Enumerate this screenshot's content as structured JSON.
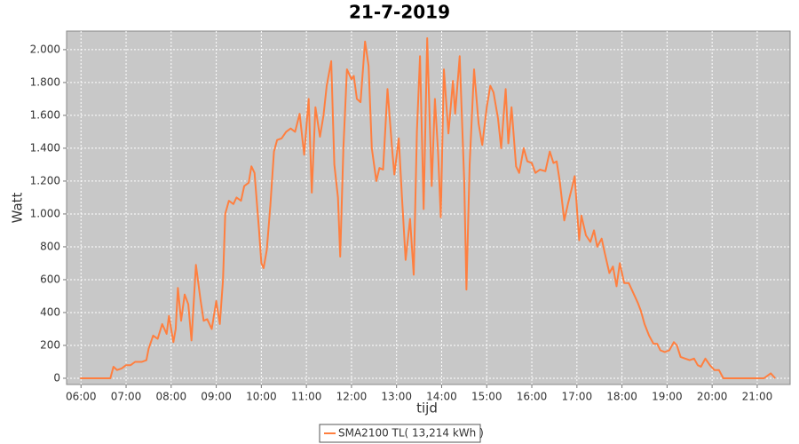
{
  "chart_data": {
    "type": "line",
    "title": "21-7-2019",
    "xlabel": "tijd",
    "ylabel": "Watt",
    "xlim": [
      5.68,
      21.73
    ],
    "ylim": [
      -38,
      2113
    ],
    "grid": true,
    "legend": "bottom",
    "xticks": [
      {
        "value": 6,
        "label": "06:00"
      },
      {
        "value": 7,
        "label": "07:00"
      },
      {
        "value": 8,
        "label": "08:00"
      },
      {
        "value": 9,
        "label": "09:00"
      },
      {
        "value": 10,
        "label": "10:00"
      },
      {
        "value": 11,
        "label": "11:00"
      },
      {
        "value": 12,
        "label": "12:00"
      },
      {
        "value": 13,
        "label": "13:00"
      },
      {
        "value": 14,
        "label": "14:00"
      },
      {
        "value": 15,
        "label": "15:00"
      },
      {
        "value": 16,
        "label": "16:00"
      },
      {
        "value": 17,
        "label": "17:00"
      },
      {
        "value": 18,
        "label": "18:00"
      },
      {
        "value": 19,
        "label": "19:00"
      },
      {
        "value": 20,
        "label": "20:00"
      },
      {
        "value": 21,
        "label": "21:00"
      }
    ],
    "yticks": [
      0,
      {
        "value": 200,
        "label": "200"
      },
      {
        "value": 400,
        "label": "400"
      },
      {
        "value": 600,
        "label": "600"
      },
      {
        "value": 800,
        "label": "800"
      },
      {
        "value": 1000,
        "label": "1.000"
      },
      {
        "value": 1200,
        "label": "1.200"
      },
      {
        "value": 1400,
        "label": "1.400"
      },
      {
        "value": 1600,
        "label": "1.600"
      },
      {
        "value": 1800,
        "label": "1.800"
      },
      {
        "value": 2000,
        "label": "2.000"
      }
    ],
    "x": [
      5.98,
      6.5,
      6.65,
      6.72,
      6.8,
      6.9,
      7.0,
      7.1,
      7.2,
      7.35,
      7.45,
      7.5,
      7.6,
      7.7,
      7.8,
      7.9,
      7.95,
      8.05,
      8.1,
      8.15,
      8.22,
      8.3,
      8.38,
      8.45,
      8.55,
      8.65,
      8.72,
      8.8,
      8.9,
      9.0,
      9.08,
      9.15,
      9.2,
      9.28,
      9.38,
      9.45,
      9.55,
      9.62,
      9.72,
      9.78,
      9.85,
      9.95,
      10.0,
      10.05,
      10.12,
      10.2,
      10.28,
      10.35,
      10.45,
      10.55,
      10.65,
      10.75,
      10.85,
      10.95,
      11.05,
      11.12,
      11.2,
      11.3,
      11.38,
      11.45,
      11.55,
      11.62,
      11.7,
      11.75,
      11.82,
      11.9,
      12.0,
      12.05,
      12.12,
      12.2,
      12.3,
      12.38,
      12.45,
      12.55,
      12.62,
      12.7,
      12.8,
      12.9,
      12.95,
      13.05,
      13.12,
      13.2,
      13.3,
      13.38,
      13.45,
      13.52,
      13.6,
      13.68,
      13.78,
      13.85,
      13.92,
      13.98,
      14.05,
      14.15,
      14.25,
      14.3,
      14.4,
      14.5,
      14.55,
      14.62,
      14.72,
      14.82,
      14.9,
      15.0,
      15.08,
      15.15,
      15.25,
      15.32,
      15.42,
      15.48,
      15.55,
      15.65,
      15.72,
      15.82,
      15.9,
      16.0,
      16.08,
      16.18,
      16.3,
      16.4,
      16.48,
      16.55,
      16.62,
      16.72,
      16.8,
      16.9,
      16.95,
      17.05,
      17.1,
      17.2,
      17.3,
      17.38,
      17.45,
      17.55,
      17.62,
      17.72,
      17.8,
      17.88,
      17.95,
      18.05,
      18.15,
      18.25,
      18.35,
      18.42,
      18.5,
      18.6,
      18.7,
      18.78,
      18.85,
      18.95,
      19.05,
      19.15,
      19.22,
      19.3,
      19.4,
      19.5,
      19.6,
      19.68,
      19.75,
      19.85,
      19.95,
      20.05,
      20.15,
      20.25,
      21.0,
      21.15,
      21.3,
      21.4
    ],
    "series": [
      {
        "name": "SMA2100 TL( 13,214 kWh )",
        "color": "#ff7f3f",
        "values": [
          0,
          0,
          0,
          70,
          50,
          60,
          80,
          80,
          100,
          100,
          110,
          180,
          260,
          240,
          330,
          270,
          380,
          220,
          300,
          550,
          350,
          510,
          450,
          230,
          690,
          480,
          350,
          360,
          300,
          470,
          330,
          600,
          1000,
          1080,
          1060,
          1100,
          1080,
          1170,
          1190,
          1290,
          1250,
          900,
          700,
          670,
          780,
          1050,
          1380,
          1450,
          1460,
          1500,
          1520,
          1500,
          1610,
          1360,
          1700,
          1130,
          1650,
          1470,
          1600,
          1780,
          1930,
          1300,
          1100,
          740,
          1400,
          1880,
          1820,
          1840,
          1700,
          1680,
          2050,
          1900,
          1400,
          1200,
          1280,
          1270,
          1760,
          1400,
          1240,
          1460,
          1100,
          720,
          970,
          630,
          1500,
          1960,
          1030,
          2070,
          1170,
          1700,
          1380,
          980,
          1880,
          1490,
          1810,
          1610,
          1960,
          1200,
          540,
          1300,
          1880,
          1550,
          1420,
          1650,
          1780,
          1740,
          1580,
          1400,
          1760,
          1430,
          1650,
          1290,
          1250,
          1400,
          1320,
          1310,
          1250,
          1270,
          1260,
          1380,
          1310,
          1320,
          1200,
          960,
          1060,
          1170,
          1230,
          840,
          990,
          870,
          830,
          900,
          800,
          850,
          760,
          640,
          680,
          560,
          700,
          580,
          580,
          520,
          460,
          410,
          330,
          260,
          210,
          210,
          170,
          160,
          170,
          220,
          200,
          130,
          120,
          110,
          120,
          80,
          70,
          120,
          80,
          50,
          50,
          0,
          0,
          0,
          30,
          0
        ]
      }
    ]
  }
}
